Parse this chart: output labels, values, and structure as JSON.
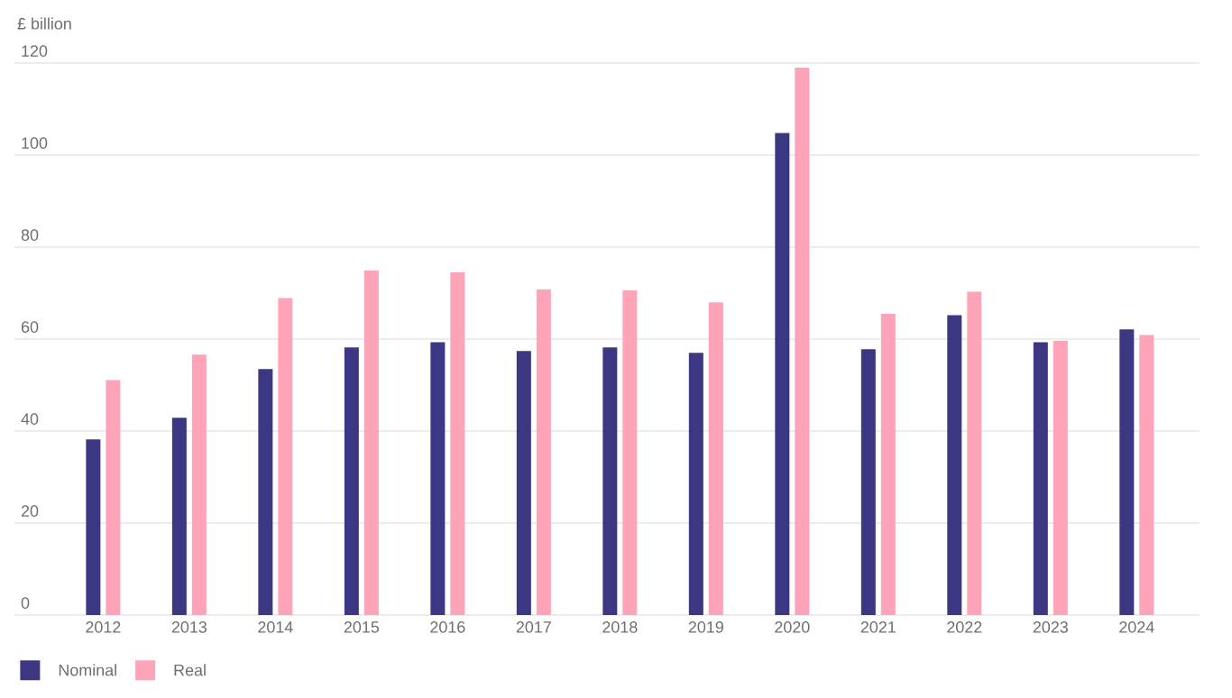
{
  "chart_data": {
    "type": "bar",
    "ylabel": "£ billion",
    "categories": [
      "2012",
      "2013",
      "2014",
      "2015",
      "2016",
      "2017",
      "2018",
      "2019",
      "2020",
      "2021",
      "2022",
      "2023",
      "2024"
    ],
    "series": [
      {
        "name": "Nominal",
        "color": "#3b3782",
        "values": [
          38.2,
          42.9,
          53.5,
          58.2,
          59.3,
          57.4,
          58.2,
          57.0,
          104.8,
          57.8,
          65.2,
          59.3,
          62.1
        ]
      },
      {
        "name": "Real",
        "color": "#ffa3b8",
        "values": [
          51.1,
          56.6,
          68.9,
          74.9,
          74.5,
          70.8,
          70.6,
          68.0,
          119.0,
          65.5,
          70.3,
          59.6,
          60.9
        ]
      }
    ],
    "ylim": [
      0,
      120
    ],
    "yticks": [
      0,
      20,
      40,
      60,
      80,
      100,
      120
    ],
    "grid": "y",
    "legend": "bottom left"
  }
}
